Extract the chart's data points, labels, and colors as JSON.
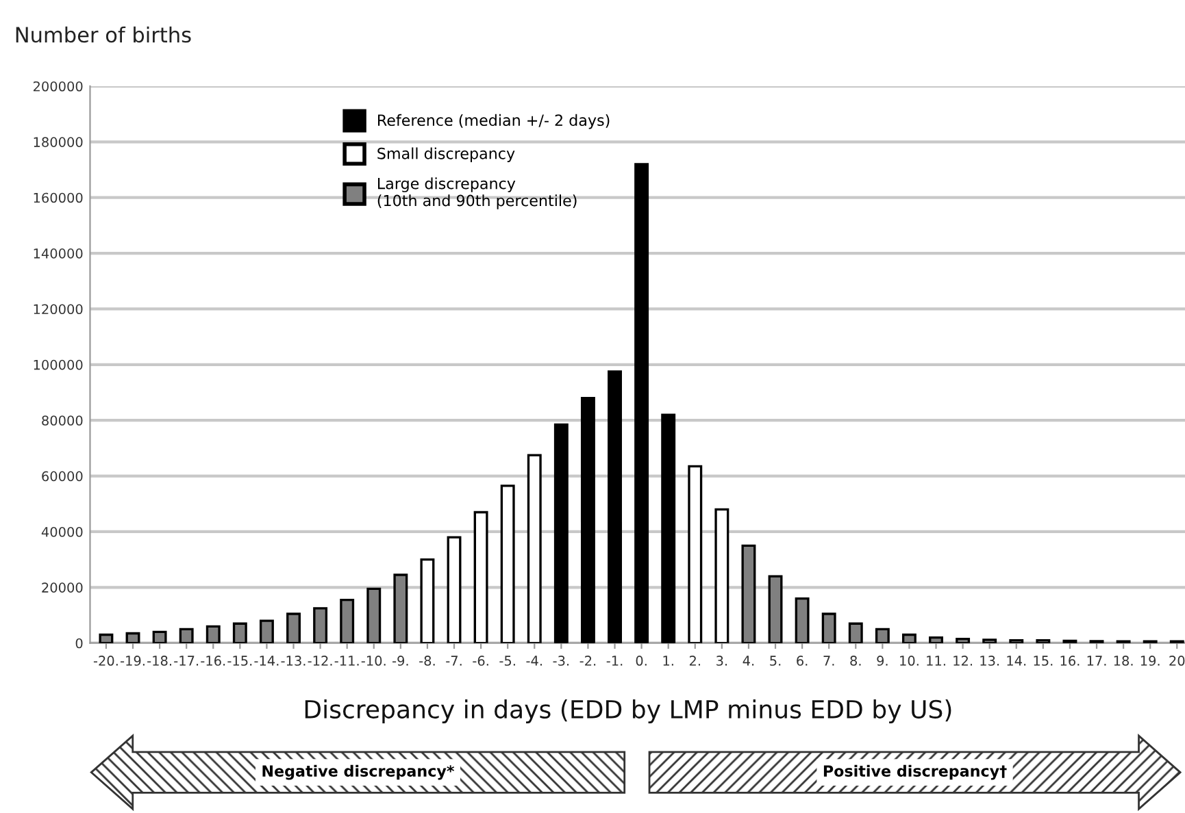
{
  "chart_data": {
    "type": "bar",
    "ylabel": "Number of births",
    "xlabel": "Discrepancy in days (EDD by LMP minus EDD by US)",
    "categories": [
      "-20.",
      "-19.",
      "-18.",
      "-17.",
      "-16.",
      "-15.",
      "-14.",
      "-13.",
      "-12.",
      "-11.",
      "-10.",
      "-9.",
      "-8.",
      "-7.",
      "-6.",
      "-5.",
      "-4.",
      "-3.",
      "-2.",
      "-1.",
      "0.",
      "1.",
      "2.",
      "3.",
      "4.",
      "5.",
      "6.",
      "7.",
      "8.",
      "9.",
      "10.",
      "11.",
      "12.",
      "13.",
      "14.",
      "15.",
      "16.",
      "17.",
      "18.",
      "19.",
      "20"
    ],
    "series": [
      {
        "name": "Reference (median +/- 2 days)",
        "color": "#000000",
        "values": [
          null,
          null,
          null,
          null,
          null,
          null,
          null,
          null,
          null,
          null,
          null,
          null,
          null,
          null,
          null,
          null,
          null,
          78500,
          88000,
          97500,
          172000,
          82000,
          null,
          null,
          null,
          null,
          null,
          null,
          null,
          null,
          null,
          null,
          null,
          null,
          null,
          null,
          null,
          null,
          null,
          null,
          null
        ]
      },
      {
        "name": "Small discrepancy",
        "color": "#ffffff",
        "values": [
          null,
          null,
          null,
          null,
          null,
          null,
          null,
          null,
          null,
          null,
          null,
          null,
          30000,
          38000,
          47000,
          56500,
          67500,
          null,
          null,
          null,
          null,
          null,
          63500,
          48000,
          null,
          null,
          null,
          null,
          null,
          null,
          null,
          null,
          null,
          null,
          null,
          null,
          null,
          null,
          null,
          null,
          null
        ]
      },
      {
        "name": "Large discrepancy\n(10th and 90th percentile)",
        "color": "#808080",
        "values": [
          3000,
          3500,
          4000,
          5000,
          6000,
          7000,
          8000,
          10500,
          12500,
          15500,
          19500,
          24500,
          null,
          null,
          null,
          null,
          null,
          null,
          null,
          null,
          null,
          null,
          null,
          null,
          35000,
          24000,
          16000,
          10500,
          7000,
          5000,
          3000,
          2000,
          1500,
          1200,
          1000,
          1000,
          800,
          700,
          600,
          600,
          600
        ]
      }
    ],
    "ylim": [
      0,
      200000
    ],
    "yticks": [
      0,
      20000,
      40000,
      60000,
      80000,
      100000,
      120000,
      140000,
      160000,
      180000,
      200000
    ],
    "grid": "y",
    "legend": "top center",
    "annotations": [
      "Negative discrepancy*",
      "Positive discrepancy†"
    ]
  }
}
